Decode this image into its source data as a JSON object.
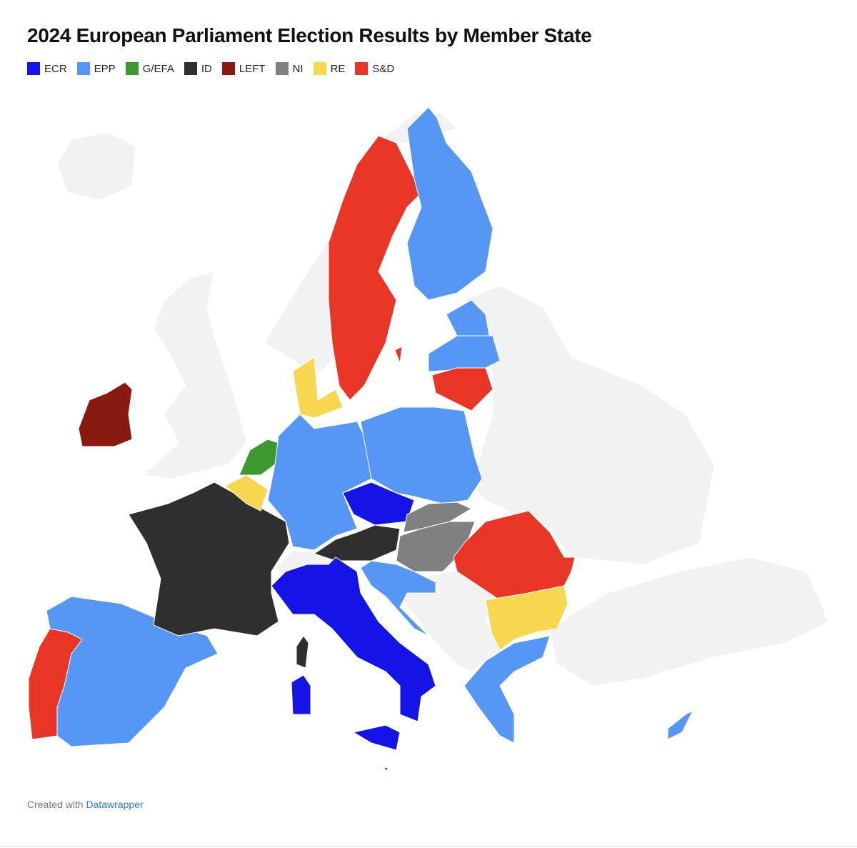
{
  "title": "2024 European Parliament Election Results by Member State",
  "legend": [
    {
      "name": "ECR",
      "color": "#1414e6"
    },
    {
      "name": "EPP",
      "color": "#5697f5"
    },
    {
      "name": "G/EFA",
      "color": "#3c992c"
    },
    {
      "name": "ID",
      "color": "#2f2f2f"
    },
    {
      "name": "LEFT",
      "color": "#8a1a10"
    },
    {
      "name": "NI",
      "color": "#808080"
    },
    {
      "name": "RE",
      "color": "#f7d74f"
    },
    {
      "name": "S&D",
      "color": "#e83526"
    }
  ],
  "credit": {
    "text": "Created with",
    "link": "Datawrapper"
  }
}
